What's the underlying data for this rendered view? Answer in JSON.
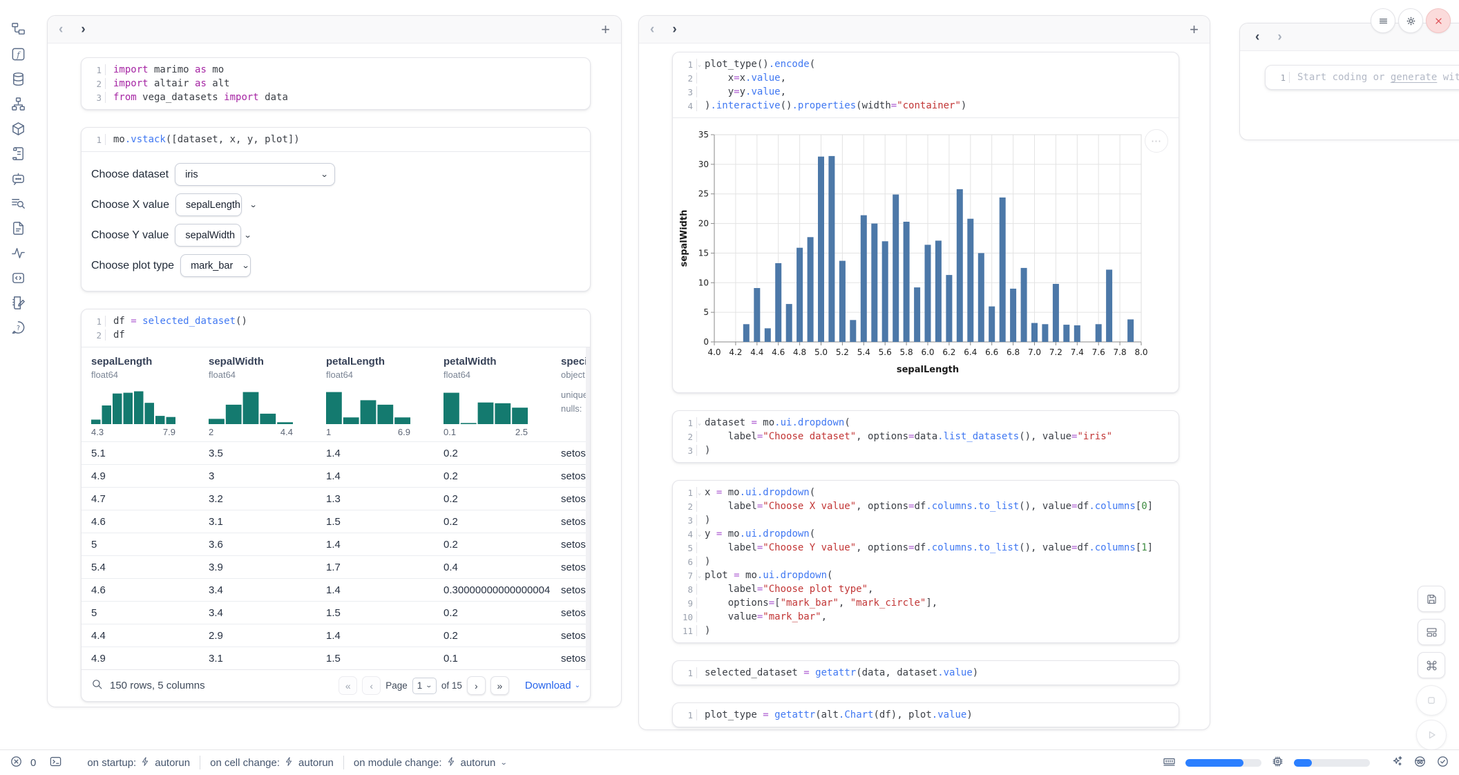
{
  "sidebar": {
    "icons": [
      "file-tree",
      "function",
      "database",
      "dependency-graph",
      "package",
      "script",
      "chatbot",
      "logs",
      "document",
      "tracing",
      "snippets",
      "scratchpad",
      "help"
    ]
  },
  "controls": {
    "rows": [
      {
        "label": "Choose dataset",
        "value": "iris"
      },
      {
        "label": "Choose X value",
        "value": "sepalLength"
      },
      {
        "label": "Choose Y value",
        "value": "sepalWidth"
      },
      {
        "label": "Choose plot type",
        "value": "mark_bar"
      }
    ]
  },
  "code": {
    "c1": {
      "lines": [
        {
          "n": 1,
          "tokens": [
            [
              "k",
              "import"
            ],
            [
              "t",
              " marimo "
            ],
            [
              "k",
              "as"
            ],
            [
              "t",
              " mo"
            ]
          ]
        },
        {
          "n": 2,
          "tokens": [
            [
              "k",
              "import"
            ],
            [
              "t",
              " altair "
            ],
            [
              "k",
              "as"
            ],
            [
              "t",
              " alt"
            ]
          ]
        },
        {
          "n": 3,
          "tokens": [
            [
              "k",
              "from"
            ],
            [
              "t",
              " vega_datasets "
            ],
            [
              "k",
              "import"
            ],
            [
              "t",
              " data"
            ]
          ]
        }
      ]
    },
    "c2": {
      "lines": [
        {
          "n": 1,
          "tokens": [
            [
              "t",
              "mo"
            ],
            [
              "f",
              ".vstack"
            ],
            [
              "t",
              "([dataset, x, y, plot])"
            ]
          ]
        }
      ]
    },
    "c3": {
      "lines": [
        {
          "n": 1,
          "tokens": [
            [
              "t",
              "df "
            ],
            [
              "o",
              "="
            ],
            [
              "t",
              " "
            ],
            [
              "f",
              "selected_dataset"
            ],
            [
              "t",
              "()"
            ]
          ]
        },
        {
          "n": 2,
          "tokens": [
            [
              "t",
              "df"
            ]
          ]
        }
      ]
    },
    "m1": {
      "lines": [
        {
          "n": 1,
          "fold": true,
          "tokens": [
            [
              "t",
              "plot_type()"
            ],
            [
              "f",
              ".encode"
            ],
            [
              "t",
              "("
            ]
          ]
        },
        {
          "n": 2,
          "tokens": [
            [
              "t",
              "    x"
            ],
            [
              "o",
              "="
            ],
            [
              "t",
              "x"
            ],
            [
              "f",
              ".value"
            ],
            [
              "t",
              ","
            ]
          ]
        },
        {
          "n": 3,
          "tokens": [
            [
              "t",
              "    y"
            ],
            [
              "o",
              "="
            ],
            [
              "t",
              "y"
            ],
            [
              "f",
              ".value"
            ],
            [
              "t",
              ","
            ]
          ]
        },
        {
          "n": 4,
          "tokens": [
            [
              "t",
              ")"
            ],
            [
              "f",
              ".interactive"
            ],
            [
              "t",
              "()"
            ],
            [
              "f",
              ".properties"
            ],
            [
              "t",
              "(width"
            ],
            [
              "o",
              "="
            ],
            [
              "s",
              "\"container\""
            ],
            [
              "t",
              ")"
            ]
          ]
        }
      ]
    },
    "m2": {
      "lines": [
        {
          "n": 1,
          "fold": true,
          "tokens": [
            [
              "t",
              "dataset "
            ],
            [
              "o",
              "="
            ],
            [
              "t",
              " mo"
            ],
            [
              "f",
              ".ui.dropdown"
            ],
            [
              "t",
              "("
            ]
          ]
        },
        {
          "n": 2,
          "tokens": [
            [
              "t",
              "    label"
            ],
            [
              "o",
              "="
            ],
            [
              "s",
              "\"Choose dataset\""
            ],
            [
              "t",
              ", options"
            ],
            [
              "o",
              "="
            ],
            [
              "t",
              "data"
            ],
            [
              "f",
              ".list_datasets"
            ],
            [
              "t",
              "(), value"
            ],
            [
              "o",
              "="
            ],
            [
              "s",
              "\"iris\""
            ]
          ]
        },
        {
          "n": 3,
          "tokens": [
            [
              "t",
              ")"
            ]
          ]
        }
      ]
    },
    "m3": {
      "lines": [
        {
          "n": 1,
          "fold": true,
          "tokens": [
            [
              "t",
              "x "
            ],
            [
              "o",
              "="
            ],
            [
              "t",
              " mo"
            ],
            [
              "f",
              ".ui.dropdown"
            ],
            [
              "t",
              "("
            ]
          ]
        },
        {
          "n": 2,
          "tokens": [
            [
              "t",
              "    label"
            ],
            [
              "o",
              "="
            ],
            [
              "s",
              "\"Choose X value\""
            ],
            [
              "t",
              ", options"
            ],
            [
              "o",
              "="
            ],
            [
              "t",
              "df"
            ],
            [
              "f",
              ".columns.to_list"
            ],
            [
              "t",
              "(), value"
            ],
            [
              "o",
              "="
            ],
            [
              "t",
              "df"
            ],
            [
              "f",
              ".columns"
            ],
            [
              "t",
              "["
            ],
            [
              "n",
              "0"
            ],
            [
              "t",
              "]"
            ]
          ]
        },
        {
          "n": 3,
          "tokens": [
            [
              "t",
              ")"
            ]
          ]
        },
        {
          "n": 4,
          "fold": true,
          "tokens": [
            [
              "t",
              "y "
            ],
            [
              "o",
              "="
            ],
            [
              "t",
              " mo"
            ],
            [
              "f",
              ".ui.dropdown"
            ],
            [
              "t",
              "("
            ]
          ]
        },
        {
          "n": 5,
          "tokens": [
            [
              "t",
              "    label"
            ],
            [
              "o",
              "="
            ],
            [
              "s",
              "\"Choose Y value\""
            ],
            [
              "t",
              ", options"
            ],
            [
              "o",
              "="
            ],
            [
              "t",
              "df"
            ],
            [
              "f",
              ".columns.to_list"
            ],
            [
              "t",
              "(), value"
            ],
            [
              "o",
              "="
            ],
            [
              "t",
              "df"
            ],
            [
              "f",
              ".columns"
            ],
            [
              "t",
              "["
            ],
            [
              "n",
              "1"
            ],
            [
              "t",
              "]"
            ]
          ]
        },
        {
          "n": 6,
          "tokens": [
            [
              "t",
              ")"
            ]
          ]
        },
        {
          "n": 7,
          "fold": true,
          "tokens": [
            [
              "t",
              "plot "
            ],
            [
              "o",
              "="
            ],
            [
              "t",
              " mo"
            ],
            [
              "f",
              ".ui.dropdown"
            ],
            [
              "t",
              "("
            ]
          ]
        },
        {
          "n": 8,
          "tokens": [
            [
              "t",
              "    label"
            ],
            [
              "o",
              "="
            ],
            [
              "s",
              "\"Choose plot type\""
            ],
            [
              "t",
              ","
            ]
          ]
        },
        {
          "n": 9,
          "tokens": [
            [
              "t",
              "    options"
            ],
            [
              "o",
              "="
            ],
            [
              "t",
              "["
            ],
            [
              "s",
              "\"mark_bar\""
            ],
            [
              "t",
              ", "
            ],
            [
              "s",
              "\"mark_circle\""
            ],
            [
              "t",
              "],"
            ]
          ]
        },
        {
          "n": 10,
          "tokens": [
            [
              "t",
              "    value"
            ],
            [
              "o",
              "="
            ],
            [
              "s",
              "\"mark_bar\""
            ],
            [
              "t",
              ","
            ]
          ]
        },
        {
          "n": 11,
          "tokens": [
            [
              "t",
              ")"
            ]
          ]
        }
      ]
    },
    "m4": {
      "lines": [
        {
          "n": 1,
          "tokens": [
            [
              "t",
              "selected_dataset "
            ],
            [
              "o",
              "="
            ],
            [
              "t",
              " "
            ],
            [
              "f",
              "getattr"
            ],
            [
              "t",
              "(data, dataset"
            ],
            [
              "f",
              ".value"
            ],
            [
              "t",
              ")"
            ]
          ]
        }
      ]
    },
    "m5": {
      "lines": [
        {
          "n": 1,
          "tokens": [
            [
              "t",
              "plot_type "
            ],
            [
              "o",
              "="
            ],
            [
              "t",
              " "
            ],
            [
              "f",
              "getattr"
            ],
            [
              "t",
              "(alt"
            ],
            [
              "f",
              ".Chart"
            ],
            [
              "t",
              "(df), plot"
            ],
            [
              "f",
              ".value"
            ],
            [
              "t",
              ")"
            ]
          ]
        }
      ]
    }
  },
  "table": {
    "columns": [
      {
        "name": "sepalLength",
        "dtype": "float64",
        "min": "4.3",
        "max": "7.9",
        "hist": [
          0.12,
          0.5,
          0.82,
          0.84,
          0.88,
          0.57,
          0.22,
          0.19
        ]
      },
      {
        "name": "sepalWidth",
        "dtype": "float64",
        "min": "2",
        "max": "4.4",
        "hist": [
          0.14,
          0.52,
          0.86,
          0.28,
          0.05
        ]
      },
      {
        "name": "petalLength",
        "dtype": "float64",
        "min": "1",
        "max": "6.9",
        "hist": [
          0.86,
          0.18,
          0.64,
          0.52,
          0.18
        ]
      },
      {
        "name": "petalWidth",
        "dtype": "float64",
        "min": "0.1",
        "max": "2.5",
        "hist": [
          0.84,
          0.03,
          0.58,
          0.56,
          0.44
        ]
      },
      {
        "name": "species",
        "dtype": "object",
        "stats": [
          "unique:",
          "nulls:"
        ]
      }
    ],
    "rows": [
      [
        "5.1",
        "3.5",
        "1.4",
        "0.2",
        "setosa"
      ],
      [
        "4.9",
        "3",
        "1.4",
        "0.2",
        "setosa"
      ],
      [
        "4.7",
        "3.2",
        "1.3",
        "0.2",
        "setosa"
      ],
      [
        "4.6",
        "3.1",
        "1.5",
        "0.2",
        "setosa"
      ],
      [
        "5",
        "3.6",
        "1.4",
        "0.2",
        "setosa"
      ],
      [
        "5.4",
        "3.9",
        "1.7",
        "0.4",
        "setosa"
      ],
      [
        "4.6",
        "3.4",
        "1.4",
        "0.30000000000000004",
        "setosa"
      ],
      [
        "5",
        "3.4",
        "1.5",
        "0.2",
        "setosa"
      ],
      [
        "4.4",
        "2.9",
        "1.4",
        "0.2",
        "setosa"
      ],
      [
        "4.9",
        "3.1",
        "1.5",
        "0.1",
        "setosa"
      ]
    ],
    "footer": {
      "summary": "150 rows, 5 columns",
      "first_label": "«",
      "prev_label": "‹",
      "page_label": "Page",
      "page_value": "1",
      "of_label": "of 15",
      "next_label": "›",
      "last_label": "»",
      "download_label": "Download"
    },
    "hist_color": "#147a6f"
  },
  "chart_data": {
    "type": "bar",
    "title": "",
    "xlabel": "sepalLength",
    "ylabel": "sepalWidth",
    "xlim": [
      4.0,
      8.0
    ],
    "ylim": [
      0,
      35
    ],
    "x_tick_step": 0.2,
    "y_tick_step": 5,
    "grid": true,
    "bar_color": "#4c78a8",
    "aggregate": "sum of sepalWidth per sepalLength value",
    "x": [
      4.3,
      4.4,
      4.5,
      4.6,
      4.7,
      4.8,
      4.9,
      5.0,
      5.1,
      5.2,
      5.3,
      5.4,
      5.5,
      5.6,
      5.7,
      5.8,
      5.9,
      6.0,
      6.1,
      6.2,
      6.3,
      6.4,
      6.5,
      6.6,
      6.7,
      6.8,
      6.9,
      7.0,
      7.1,
      7.2,
      7.3,
      7.4,
      7.6,
      7.7,
      7.9
    ],
    "y": [
      3.0,
      9.1,
      2.3,
      13.3,
      6.4,
      15.9,
      17.7,
      31.3,
      31.4,
      13.7,
      3.7,
      21.4,
      20.0,
      17.0,
      24.9,
      20.3,
      9.2,
      16.4,
      17.1,
      11.3,
      25.8,
      20.8,
      15.0,
      6.0,
      24.4,
      9.0,
      12.5,
      3.2,
      3.0,
      9.8,
      2.9,
      2.8,
      3.0,
      12.2,
      3.8
    ]
  },
  "right_cell": {
    "line_number": "1",
    "placeholder_prefix": "Start coding or ",
    "placeholder_link": "generate",
    "placeholder_suffix": " with AI"
  },
  "status_bar": {
    "error_count": "0",
    "groups": [
      {
        "label": "on startup:",
        "value": "autorun"
      },
      {
        "label": "on cell change:",
        "value": "autorun"
      },
      {
        "label": "on module change:",
        "value": "autorun",
        "chevron": true
      }
    ],
    "ram_pct": 76,
    "cpu_pct": 24,
    "accent": "#2b7fff"
  }
}
